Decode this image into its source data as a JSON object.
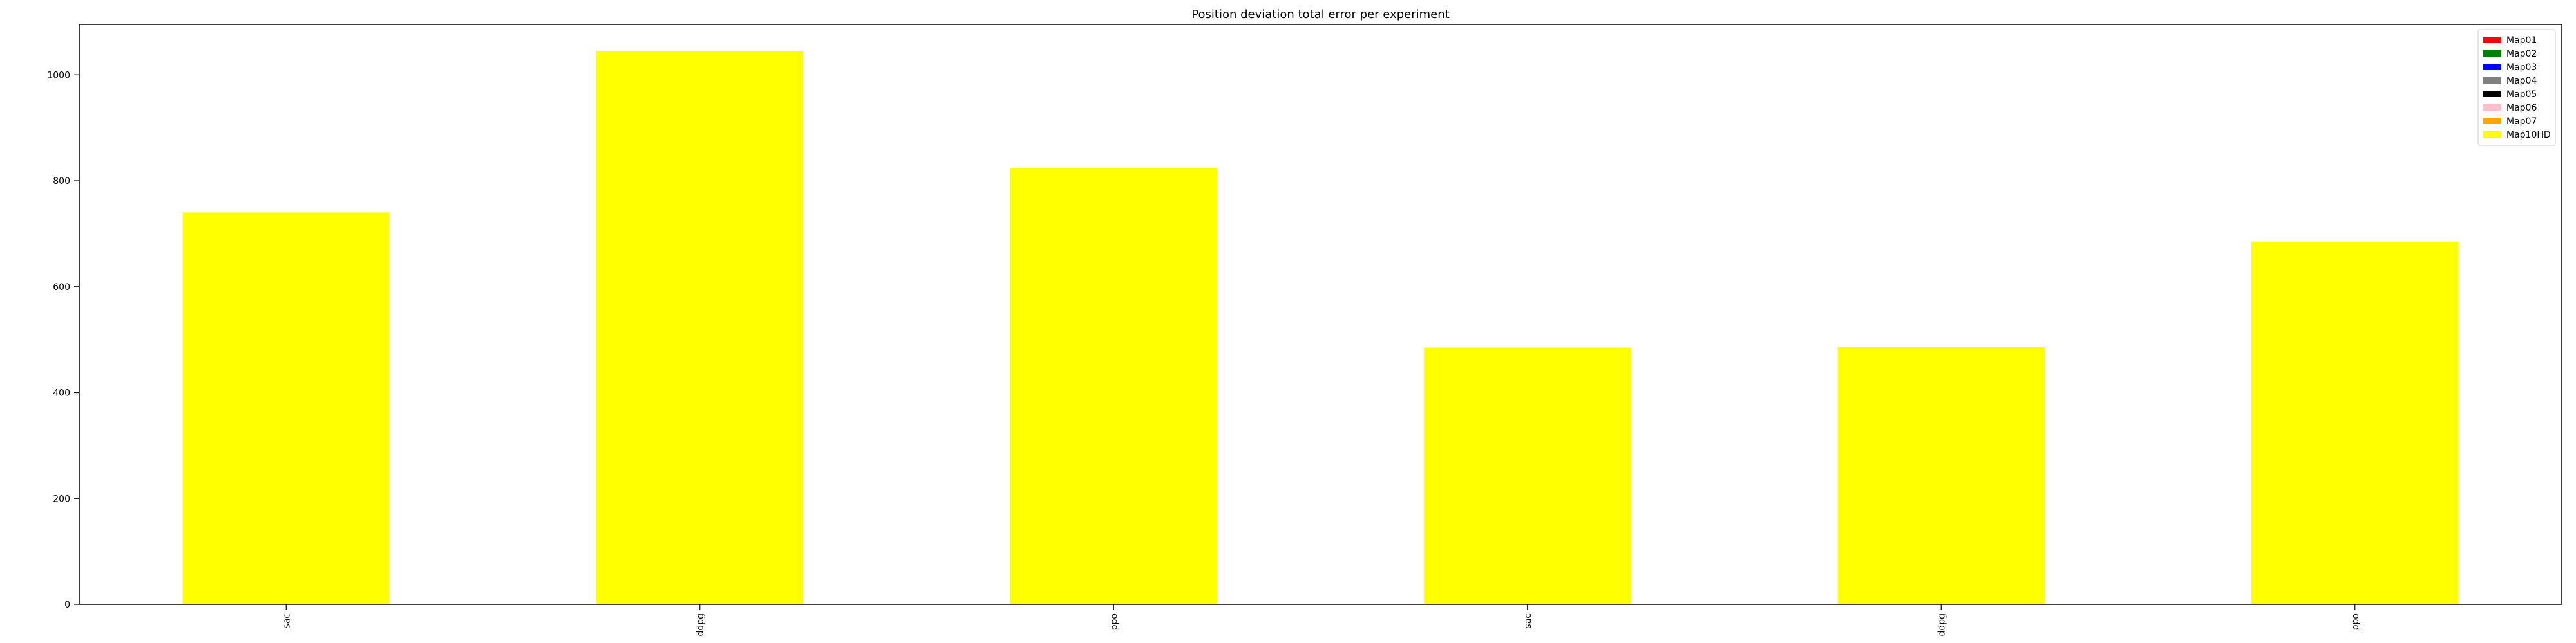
{
  "chart_data": {
    "type": "bar",
    "title": "Position deviation total error per experiment",
    "xlabel": "",
    "ylabel": "",
    "categories": [
      "sac",
      "ddpg",
      "ppo",
      "sac",
      "ddpg",
      "ppo"
    ],
    "series": [
      {
        "name": "Map01",
        "color": "#ff0000",
        "values": [
          0,
          0,
          0,
          0,
          0,
          0
        ]
      },
      {
        "name": "Map02",
        "color": "#008000",
        "values": [
          0,
          0,
          0,
          0,
          0,
          0
        ]
      },
      {
        "name": "Map03",
        "color": "#0000ff",
        "values": [
          0,
          0,
          0,
          0,
          0,
          0
        ]
      },
      {
        "name": "Map04",
        "color": "#808080",
        "values": [
          0,
          0,
          0,
          0,
          0,
          0
        ]
      },
      {
        "name": "Map05",
        "color": "#000000",
        "values": [
          0,
          0,
          0,
          0,
          0,
          0
        ]
      },
      {
        "name": "Map06",
        "color": "#ffc0cb",
        "values": [
          0,
          0,
          0,
          0,
          0,
          0
        ]
      },
      {
        "name": "Map07",
        "color": "#ffa500",
        "values": [
          0,
          0,
          0,
          0,
          0,
          0
        ]
      },
      {
        "name": "Map10HD",
        "color": "#ffff00",
        "values": [
          740,
          1045,
          823,
          485,
          486,
          685
        ]
      }
    ],
    "ylim": [
      0,
      1095
    ],
    "yticks": [
      0,
      200,
      400,
      600,
      800,
      1000
    ],
    "grid": false,
    "legend_position": "top-right",
    "stacked": true
  }
}
